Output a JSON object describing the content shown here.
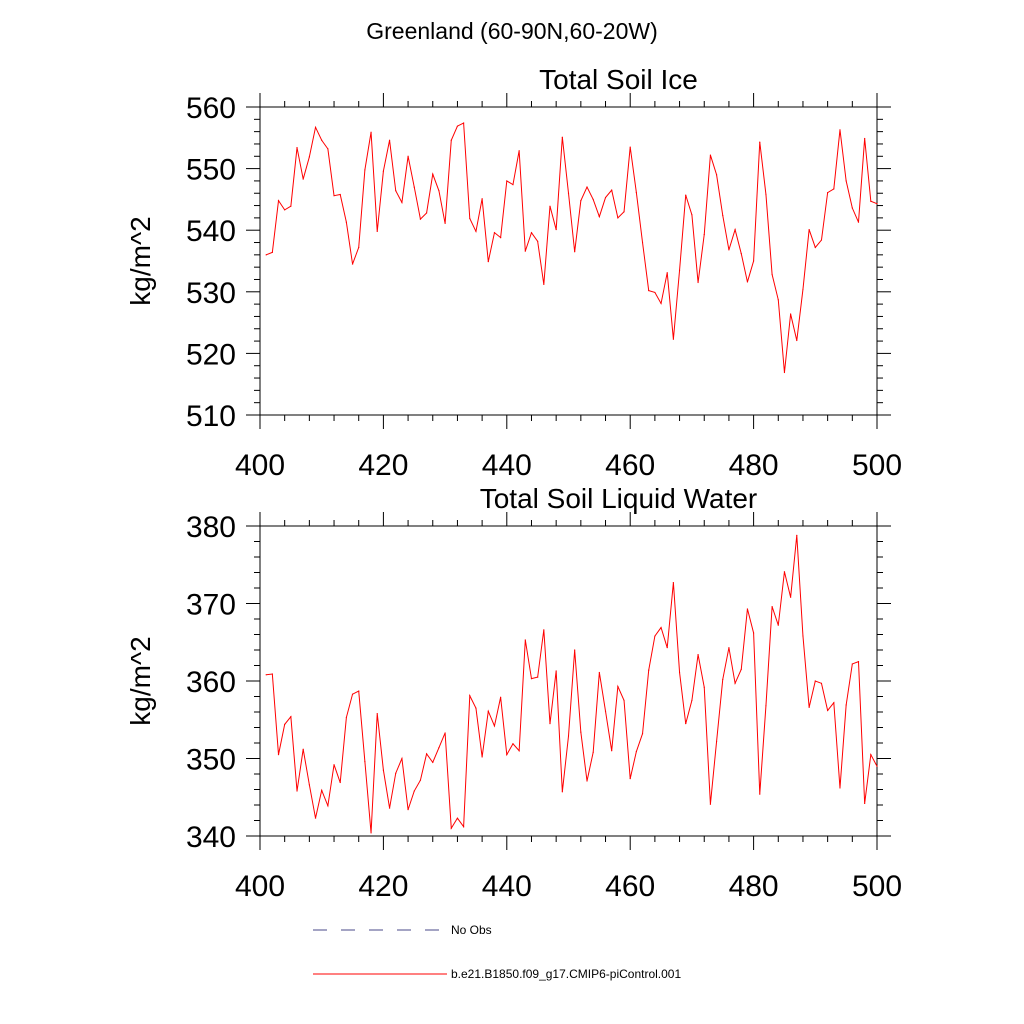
{
  "suptitle": "Greenland (60-90N,60-20W)",
  "colors": {
    "model": "#ff0000",
    "obs": "#4a4a8a",
    "axis": "#000000"
  },
  "legend": {
    "obs_label": "No Obs",
    "model_label": "b.e21.B1850.f09_g17.CMIP6-piControl.001"
  },
  "chart_data": [
    {
      "type": "line",
      "title": "Total Soil Ice",
      "xlabel": "",
      "ylabel": "kg/m^2",
      "xlim": [
        400,
        500
      ],
      "ylim": [
        510,
        560
      ],
      "xticks": [
        400,
        420,
        440,
        460,
        480,
        500
      ],
      "yticks": [
        510,
        520,
        530,
        540,
        550,
        560
      ],
      "grid": false,
      "series": [
        {
          "name": "b.e21.B1850.f09_g17.CMIP6-piControl.001",
          "x": [
            401,
            402,
            403,
            404,
            405,
            406,
            407,
            408,
            409,
            410,
            411,
            412,
            413,
            414,
            415,
            416,
            417,
            418,
            419,
            420,
            421,
            422,
            423,
            424,
            425,
            426,
            427,
            428,
            429,
            430,
            431,
            432,
            433,
            434,
            435,
            436,
            437,
            438,
            439,
            440,
            441,
            442,
            443,
            444,
            445,
            446,
            447,
            448,
            449,
            450,
            451,
            452,
            453,
            454,
            455,
            456,
            457,
            458,
            459,
            460,
            461,
            462,
            463,
            464,
            465,
            466,
            467,
            468,
            469,
            470,
            471,
            472,
            473,
            474,
            475,
            476,
            477,
            478,
            479,
            480,
            481,
            482,
            483,
            484,
            485,
            486,
            487,
            488,
            489,
            490,
            491,
            492,
            493,
            494,
            495,
            496,
            497,
            498,
            499,
            500
          ],
          "values": [
            536.0,
            536.4,
            544.8,
            543.3,
            543.9,
            553.4,
            548.3,
            551.9,
            556.7,
            554.6,
            553.2,
            545.6,
            545.8,
            541.3,
            534.5,
            537.2,
            549.8,
            555.9,
            539.8,
            549.6,
            554.6,
            546.4,
            544.5,
            552.0,
            547.0,
            541.8,
            542.8,
            549.1,
            546.4,
            541.1,
            554.6,
            556.9,
            557.4,
            541.9,
            539.8,
            545.1,
            534.9,
            539.6,
            538.8,
            548.0,
            547.4,
            552.9,
            536.6,
            539.6,
            538.2,
            531.2,
            543.9,
            540.1,
            555.1,
            546.0,
            536.5,
            544.8,
            547.0,
            545.0,
            542.2,
            545.3,
            546.5,
            542.0,
            543.0,
            553.5,
            546.1,
            538.0,
            530.2,
            529.9,
            528.1,
            533.1,
            522.3,
            533.5,
            545.7,
            542.5,
            531.5,
            539.3,
            552.2,
            549.0,
            542.4,
            536.8,
            540.1,
            536.2,
            531.6,
            535.0,
            554.3,
            545.8,
            532.8,
            528.7,
            516.9,
            526.4,
            522.1,
            530.4,
            540.1,
            537.2,
            538.4,
            546.1,
            546.7,
            556.3,
            548.0,
            543.6,
            541.3,
            554.9,
            544.7,
            544.3
          ]
        }
      ]
    },
    {
      "type": "line",
      "title": "Total Soil Liquid Water",
      "xlabel": "",
      "ylabel": "kg/m^2",
      "xlim": [
        400,
        500
      ],
      "ylim": [
        340,
        380
      ],
      "xticks": [
        400,
        420,
        440,
        460,
        480,
        500
      ],
      "yticks": [
        340,
        350,
        360,
        370,
        380
      ],
      "grid": false,
      "series": [
        {
          "name": "b.e21.B1850.f09_g17.CMIP6-piControl.001",
          "x": [
            401,
            402,
            403,
            404,
            405,
            406,
            407,
            408,
            409,
            410,
            411,
            412,
            413,
            414,
            415,
            416,
            417,
            418,
            419,
            420,
            421,
            422,
            423,
            424,
            425,
            426,
            427,
            428,
            429,
            430,
            431,
            432,
            433,
            434,
            435,
            436,
            437,
            438,
            439,
            440,
            441,
            442,
            443,
            444,
            445,
            446,
            447,
            448,
            449,
            450,
            451,
            452,
            453,
            454,
            455,
            456,
            457,
            458,
            459,
            460,
            461,
            462,
            463,
            464,
            465,
            466,
            467,
            468,
            469,
            470,
            471,
            472,
            473,
            474,
            475,
            476,
            477,
            478,
            479,
            480,
            481,
            482,
            483,
            484,
            485,
            486,
            487,
            488,
            489,
            490,
            491,
            492,
            493,
            494,
            495,
            496,
            497,
            498,
            499,
            500
          ],
          "values": [
            360.8,
            360.9,
            350.5,
            354.4,
            355.4,
            345.8,
            351.2,
            346.6,
            342.3,
            345.9,
            343.9,
            349.2,
            346.9,
            355.3,
            358.3,
            358.7,
            349.6,
            340.4,
            355.8,
            348.5,
            343.6,
            348.1,
            350.0,
            343.4,
            345.8,
            347.2,
            350.6,
            349.5,
            351.4,
            353.3,
            341.0,
            342.3,
            341.2,
            358.1,
            356.5,
            350.2,
            356.1,
            354.2,
            357.9,
            350.5,
            351.9,
            351.0,
            365.3,
            360.3,
            360.5,
            366.6,
            354.5,
            361.3,
            345.7,
            352.9,
            364.0,
            353.4,
            347.1,
            350.8,
            361.1,
            356.1,
            351.0,
            359.3,
            357.5,
            347.4,
            350.9,
            353.2,
            361.4,
            365.8,
            366.9,
            364.3,
            372.7,
            361.1,
            354.5,
            357.5,
            363.4,
            359.2,
            344.1,
            352.2,
            360.2,
            364.3,
            359.7,
            361.5,
            369.3,
            366.2,
            345.4,
            356.8,
            369.6,
            367.2,
            374.1,
            370.8,
            378.8,
            365.8,
            356.6,
            360.0,
            359.7,
            356.2,
            357.2,
            346.2,
            356.9,
            362.2,
            362.5,
            344.2,
            350.5,
            349.0
          ]
        }
      ]
    }
  ]
}
